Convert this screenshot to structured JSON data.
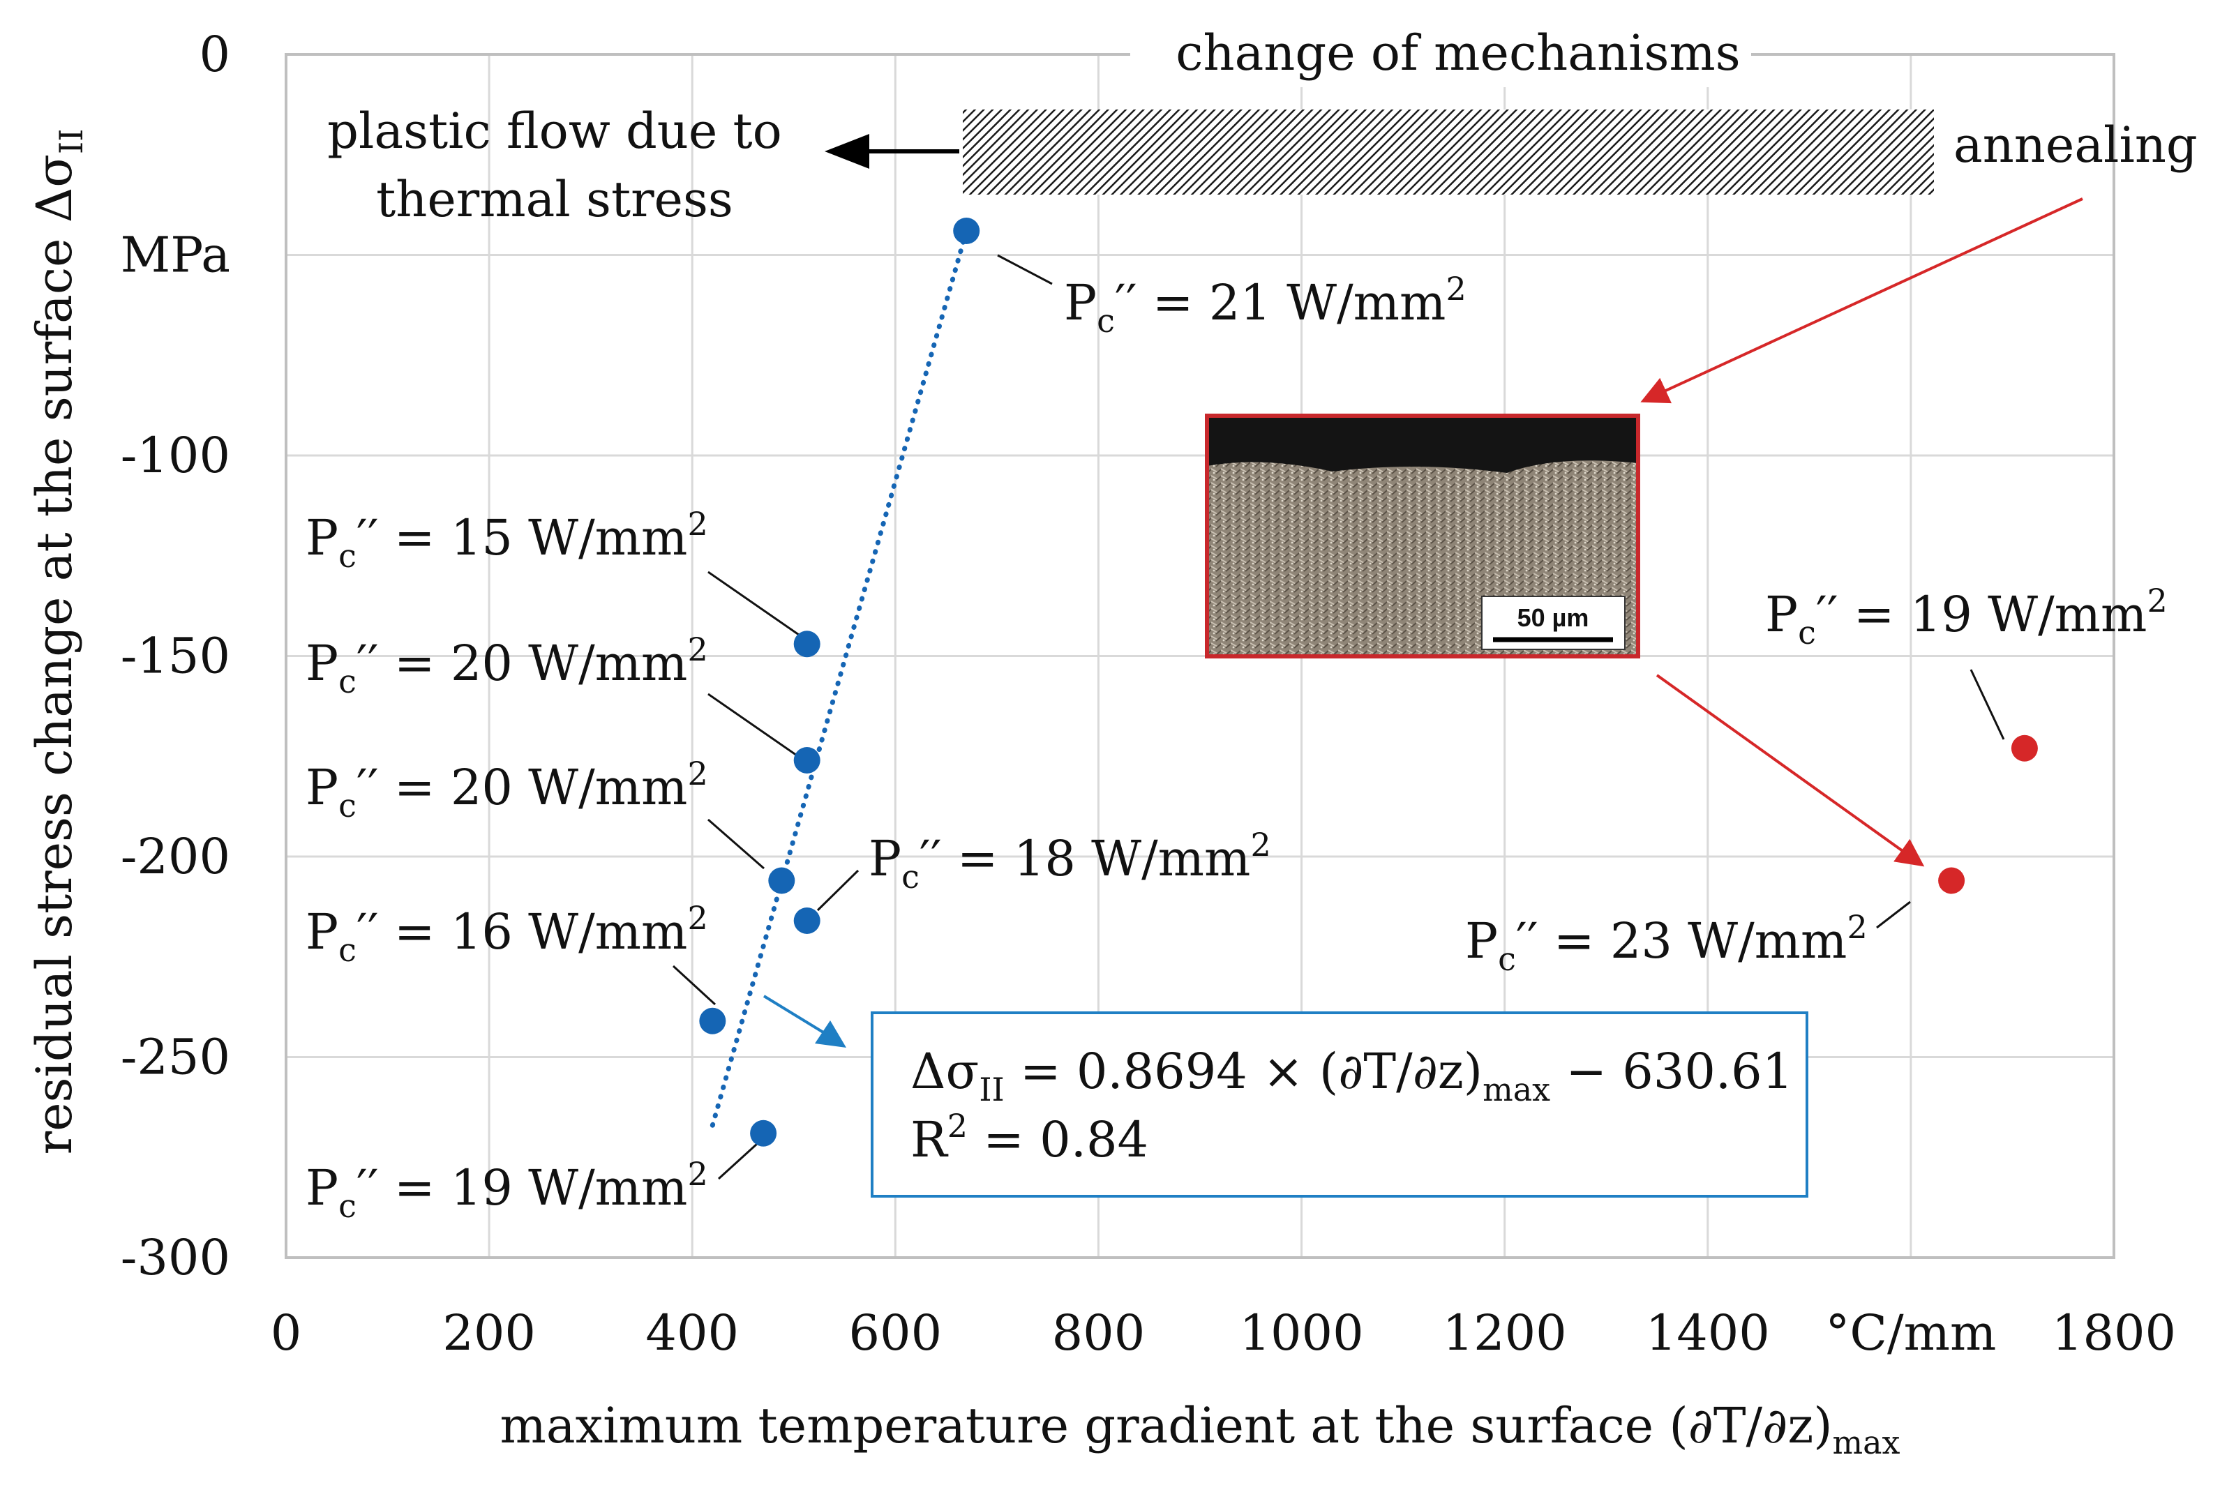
{
  "chart_data": {
    "type": "scatter",
    "xlim": [
      0,
      1800
    ],
    "ylim": [
      -300,
      0
    ],
    "x_ticks": [
      {
        "value": 0,
        "label": "0"
      },
      {
        "value": 200,
        "label": "200"
      },
      {
        "value": 400,
        "label": "400"
      },
      {
        "value": 600,
        "label": "600"
      },
      {
        "value": 800,
        "label": "800"
      },
      {
        "value": 1000,
        "label": "1000"
      },
      {
        "value": 1200,
        "label": "1200"
      },
      {
        "value": 1400,
        "label": "1400"
      },
      {
        "value": 1600,
        "label": "°C/mm"
      },
      {
        "value": 1800,
        "label": "1800"
      }
    ],
    "y_ticks": [
      {
        "value": 0,
        "label": "0"
      },
      {
        "value": -50,
        "label": "MPa"
      },
      {
        "value": -100,
        "label": "-100"
      },
      {
        "value": -150,
        "label": "-150"
      },
      {
        "value": -200,
        "label": "-200"
      },
      {
        "value": -250,
        "label": "-250"
      },
      {
        "value": -300,
        "label": "-300"
      }
    ],
    "xlabel": "maximum temperature gradient at the surface (∂T/∂z)",
    "xlabel_sub": "max",
    "ylabel": "residual stress change at the surface Δσ",
    "ylabel_sub": "II",
    "grid": true,
    "colors": {
      "blue": "#1565b4",
      "red": "#d62728",
      "grid": "#d9d9d9",
      "axis": "#bfbfbf",
      "box_border": "#1f7fc4",
      "inset_border": "#c8282c"
    },
    "series": [
      {
        "color": "blue",
        "points": [
          {
            "x": 670,
            "y": -44,
            "label": "21 W/mm"
          },
          {
            "x": 513,
            "y": -147,
            "label": "15 W/mm"
          },
          {
            "x": 513,
            "y": -176,
            "label": "20 W/mm"
          },
          {
            "x": 488,
            "y": -206,
            "label": "20 W/mm"
          },
          {
            "x": 513,
            "y": -216,
            "label": "18 W/mm"
          },
          {
            "x": 420,
            "y": -241,
            "label": "16 W/mm"
          },
          {
            "x": 470,
            "y": -269,
            "label": "19 W/mm"
          }
        ]
      },
      {
        "color": "red",
        "points": [
          {
            "x": 1640,
            "y": -206,
            "label": "23 W/mm"
          },
          {
            "x": 1712,
            "y": -173,
            "label": "19 W/mm"
          }
        ]
      }
    ],
    "trendline": {
      "x_start": 420,
      "x_end": 670,
      "y_start": -267,
      "y_end": -44
    },
    "annotations": {
      "point_label_prefix": "P",
      "point_label_sub": "c",
      "point_label_prime": "′′ = ",
      "point_label_sup": "2",
      "change_of_mechanisms": "change of mechanisms",
      "plastic_flow_line1": "plastic flow due to",
      "plastic_flow_line2": "thermal stress",
      "annealing": "annealing",
      "scale_bar": "50 µm",
      "equation_lhs": "Δσ",
      "equation_lhs_sub": "II",
      "equation_mid": " = 0.8694 × (∂T/∂z)",
      "equation_mid_sub": "max",
      "equation_rhs": " − 630.61",
      "r2_prefix": "R",
      "r2_sup": "2",
      "r2_value": " = 0.84"
    }
  }
}
